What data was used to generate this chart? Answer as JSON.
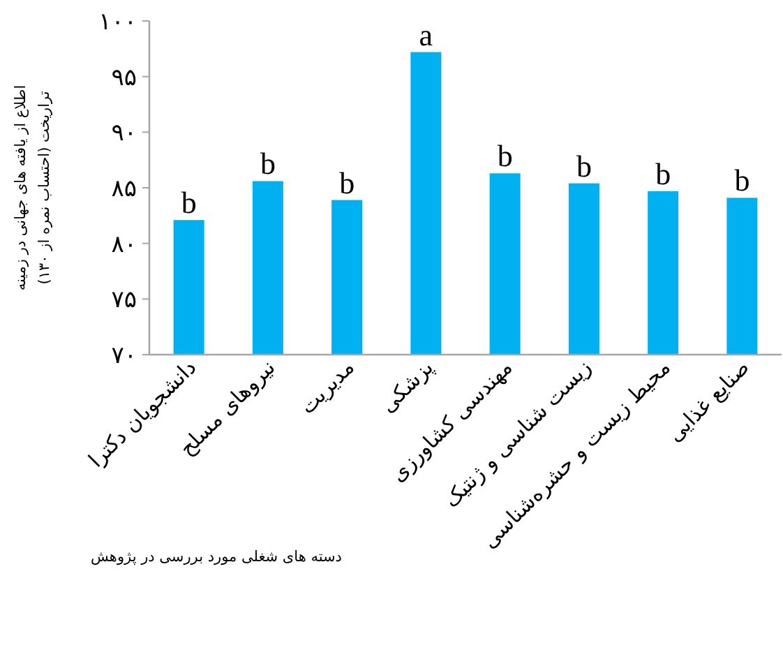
{
  "chart_data": {
    "type": "bar",
    "xlabel": "دسته های شغلی مورد بررسی در پژوهش",
    "ylabel": "اطلاع از یافته های جهانی در زمینه تراریخت (احتساب نمره از ۱۳۰)",
    "categories": [
      "دانشجویان دکترا",
      "نیروهای مسلح",
      "مدیریت",
      "پزشکی",
      "مهندسی کشاورزی",
      "زیست شناسی و ژنتیک",
      "محیط زیست و حشره‌شناسی",
      "صنایع غذایی"
    ],
    "values": [
      82.1,
      85.6,
      83.9,
      97.2,
      86.3,
      85.4,
      84.7,
      84.1
    ],
    "color": "#00b0f0",
    "ylim": [
      70,
      100
    ],
    "yticks": [
      {
        "value": 70,
        "label": "۷۰"
      },
      {
        "value": 75,
        "label": "۷۵"
      },
      {
        "value": 80,
        "label": "۸۰"
      },
      {
        "value": 85,
        "label": "۸۵"
      },
      {
        "value": 90,
        "label": "۹۰"
      },
      {
        "value": 95,
        "label": "۹۵"
      },
      {
        "value": 100,
        "label": "۱۰۰"
      }
    ],
    "annotations": [
      {
        "text": "b",
        "x": "دانشجویان دکترا",
        "y": 82.1
      },
      {
        "text": "b",
        "x": "نیروهای مسلح",
        "y": 85.6
      },
      {
        "text": "b",
        "x": "مدیریت",
        "y": 83.9
      },
      {
        "text": "a",
        "x": "پزشکی",
        "y": 97.2
      },
      {
        "text": "b",
        "x": "مهندسی کشاورزی",
        "y": 86.3
      },
      {
        "text": "b",
        "x": "زیست شناسی و ژنتیک",
        "y": 85.4
      },
      {
        "text": "b",
        "x": "محیط زیست و حشره‌شناسی",
        "y": 84.7
      },
      {
        "text": "b",
        "x": "صنایع غذایی",
        "y": 84.1
      }
    ]
  }
}
